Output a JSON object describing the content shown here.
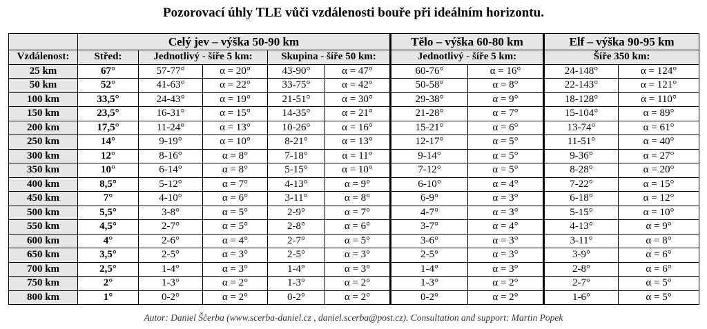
{
  "title": "Pozorovací úhly TLE vůči vzdálenosti bouře při ideálním horizontu.",
  "table": {
    "group_headers": [
      "Celý jev – výška 50-90 km",
      "Tělo – výška 60-80 km",
      "Elf – výška 90-95 km"
    ],
    "sub_headers": [
      "Vzdálenost:",
      "Střed:",
      "Jednotlivý - šíře 5 km:",
      "Skupina - šíře 50 km:",
      "Jednotlivý - šíře 5 km:",
      "Šíře 350 km:"
    ],
    "rows": [
      [
        "25 km",
        "67°",
        "57-77°",
        "α = 20°",
        "43-90°",
        "α = 47°",
        "60-76°",
        "α = 16°",
        "24-148°",
        "α = 124°"
      ],
      [
        "50 km",
        "52°",
        "41-63°",
        "α = 22°",
        "33-75°",
        "α = 42°",
        "50-58°",
        "α = 8°",
        "22-143°",
        "α = 121°"
      ],
      [
        "100 km",
        "33,5°",
        "24-43°",
        "α = 19°",
        "21-51°",
        "α = 30°",
        "29-38°",
        "α = 9°",
        "18-128°",
        "α = 110°"
      ],
      [
        "150 km",
        "23,5°",
        "16-31°",
        "α = 15°",
        "14-35°",
        "α = 21°",
        "21-28°",
        "α = 7°",
        "15-104°",
        "α = 89°"
      ],
      [
        "200 km",
        "17,5°",
        "11-24°",
        "α = 13°",
        "10-26°",
        "α = 16°",
        "15-21°",
        "α = 6°",
        "13-74°",
        "α = 61°"
      ],
      [
        "250 km",
        "14°",
        "9-19°",
        "α = 10°",
        "8-21°",
        "α = 13°",
        "12-17°",
        "α = 5°",
        "11-51°",
        "α = 40°"
      ],
      [
        "300 km",
        "12°",
        "8-16°",
        "α = 8°",
        "7-18°",
        "α = 11°",
        "9-14°",
        "α = 5°",
        "9-36°",
        "α = 27°"
      ],
      [
        "350 km",
        "10°",
        "6-14°",
        "α = 8°",
        "5-15°",
        "α = 10°",
        "7-12°",
        "α = 5°",
        "8-28°",
        "α = 20°"
      ],
      [
        "400 km",
        "8,5°",
        "5-12°",
        "α = 7°",
        "4-13°",
        "α = 9°",
        "6-10°",
        "α = 4°",
        "7-22°",
        "α = 15°"
      ],
      [
        "450 km",
        "7°",
        "4-10°",
        "α = 6°",
        "3-11°",
        "α = 8°",
        "6-9°",
        "α = 3°",
        "6-18°",
        "α = 12°"
      ],
      [
        "500 km",
        "5,5°",
        "3-8°",
        "α = 5°",
        "2-9°",
        "α = 7°",
        "4-7°",
        "α = 3°",
        "5-15°",
        "α = 10°"
      ],
      [
        "550 km",
        "4,5°",
        "2-7°",
        "α = 5°",
        "2-8°",
        "α = 6°",
        "3-7°",
        "α = 4°",
        "4-13°",
        "α = 9°"
      ],
      [
        "600 km",
        "4°",
        "2-6°",
        "α = 4°",
        "2-7°",
        "α = 5°",
        "3-6°",
        "α = 3°",
        "3-11°",
        "α = 8°"
      ],
      [
        "650 km",
        "3,5°",
        "2-5°",
        "α = 3°",
        "2-5°",
        "α = 3°",
        "2-5°",
        "α = 3°",
        "3-9°",
        "α = 6°"
      ],
      [
        "700 km",
        "2,5°",
        "1-4°",
        "α = 3°",
        "1-4°",
        "α = 3°",
        "1-4°",
        "α = 3°",
        "2-8°",
        "α = 6°"
      ],
      [
        "750 km",
        "2°",
        "1-3°",
        "α = 2°",
        "1-3°",
        "α = 2°",
        "1-3°",
        "α = 2°",
        "2-7°",
        "α = 5°"
      ],
      [
        "800 km",
        "1°",
        "0-2°",
        "α = 2°",
        "0-2°",
        "α = 2°",
        "0-2°",
        "α = 2°",
        "1-6°",
        "α = 5°"
      ]
    ]
  },
  "footer": "Autor: Daniel Ščerba (www.scerba-daniel.cz , daniel.scerba@post.cz). Consultation and support: Martin Popek"
}
